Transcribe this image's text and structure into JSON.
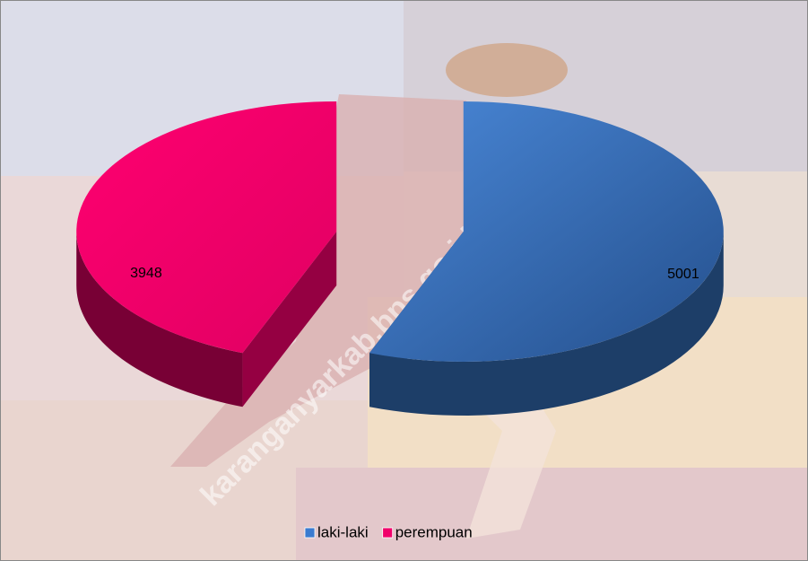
{
  "chart_data": {
    "type": "pie3d",
    "categories": [
      "laki-laki",
      "perempuan"
    ],
    "values": [
      5001,
      3948
    ],
    "colors": [
      "#3a7bd0",
      "#f0006a"
    ],
    "legend": "bottom",
    "watermark": "karanganyarkab.bps.go.id"
  }
}
